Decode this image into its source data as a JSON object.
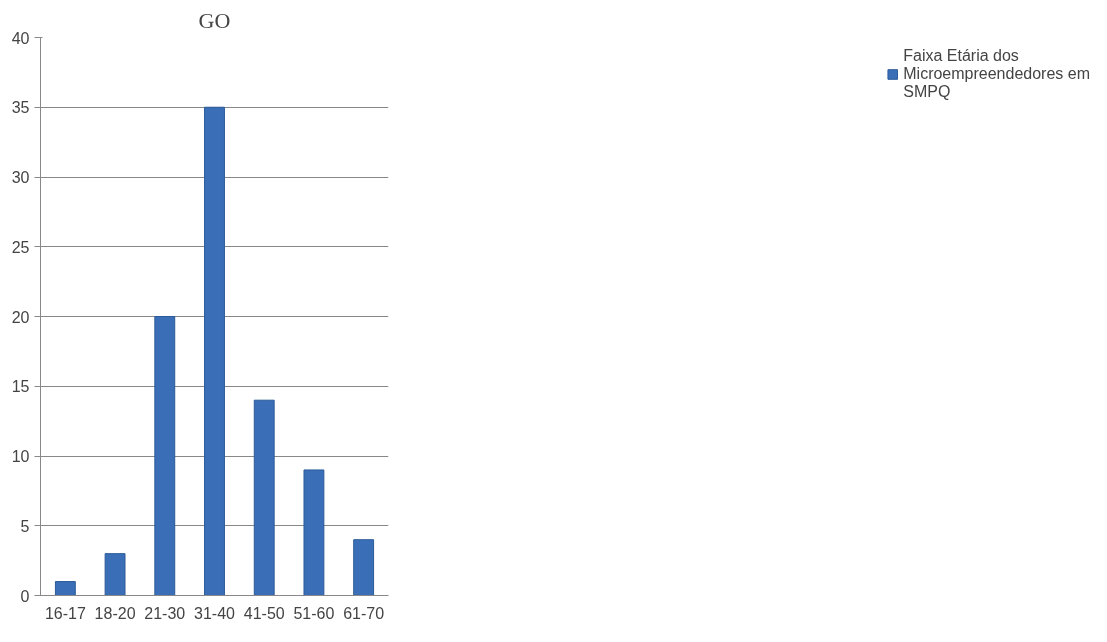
{
  "chart_data": {
    "type": "bar",
    "title": "GO",
    "categories": [
      "16-17",
      "18-20",
      "21-30",
      "31-40",
      "41-50",
      "51-60",
      "61-70"
    ],
    "series": [
      {
        "name": "Faixa Etária dos Microempreendedores em SMPQ",
        "color": "#3a6fb8",
        "values": [
          1,
          3,
          20,
          35,
          14,
          9,
          4
        ]
      }
    ],
    "ylim": [
      0,
      40
    ],
    "yticks": [
      0,
      5,
      10,
      15,
      20,
      25,
      30,
      35,
      40
    ],
    "grid": "y",
    "legend": "right"
  }
}
